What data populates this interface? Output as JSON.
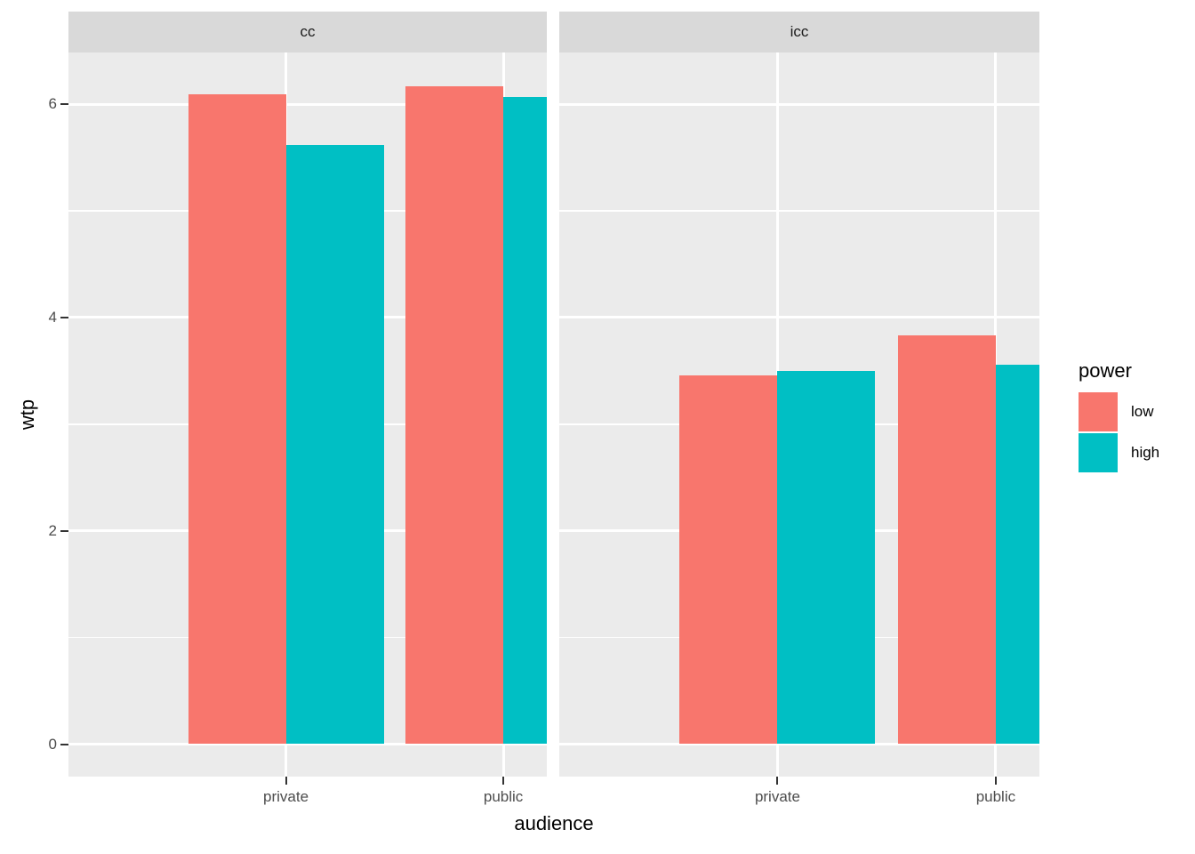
{
  "chart_data": {
    "type": "bar",
    "title": "",
    "xlabel": "audience",
    "ylabel": "wtp",
    "categories": [
      "private",
      "public"
    ],
    "facet_labels": [
      "cc",
      "icc"
    ],
    "facets": [
      {
        "label": "cc",
        "series": [
          {
            "name": "low",
            "values": [
              6.09,
              6.17
            ]
          },
          {
            "name": "high",
            "values": [
              5.62,
              6.07
            ]
          }
        ]
      },
      {
        "label": "icc",
        "series": [
          {
            "name": "low",
            "values": [
              3.46,
              3.83
            ]
          },
          {
            "name": "high",
            "values": [
              3.5,
              3.56
            ]
          }
        ]
      }
    ],
    "y_axis": {
      "ticks": [
        0,
        2,
        4,
        6
      ],
      "minor_ticks": [
        1,
        3,
        5
      ],
      "range": [
        -0.31,
        6.49
      ],
      "grid": true
    },
    "legend": {
      "title": "power",
      "position": "right",
      "entries": [
        {
          "label": "low",
          "color": "#F8766D"
        },
        {
          "label": "high",
          "color": "#00BFC4"
        }
      ]
    },
    "theme": {
      "panel_background": "#EBEBEB",
      "strip_background": "#D9D9D9",
      "grid_color": "#FFFFFF",
      "tick_text_color": "#4D4D4D",
      "strip_text_color": "#1A1A1A",
      "axis_title_color": "#000000",
      "tick_mark_color": "#333333"
    }
  }
}
